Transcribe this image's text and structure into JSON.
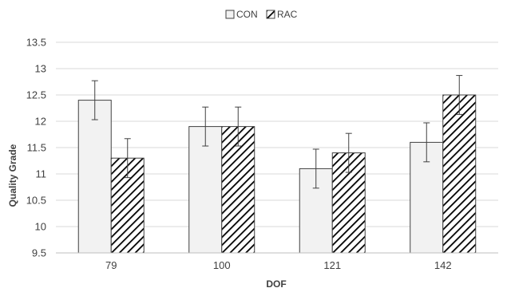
{
  "chart_data": {
    "type": "bar",
    "xlabel": "DOF",
    "ylabel": "Quality Grade",
    "categories": [
      "79",
      "100",
      "121",
      "142"
    ],
    "ylim": [
      9.5,
      13.5
    ],
    "yticks": [
      "9.5",
      "10",
      "10.5",
      "11",
      "11.5",
      "12",
      "12.5",
      "13",
      "13.5"
    ],
    "grid": true,
    "legend_position": "top-center",
    "series": [
      {
        "name": "CON",
        "values": [
          12.4,
          11.9,
          11.1,
          11.6
        ],
        "errors": [
          0.37,
          0.37,
          0.37,
          0.37
        ],
        "fill": "plain",
        "color": "#f2f2f2"
      },
      {
        "name": "RAC",
        "values": [
          11.3,
          11.9,
          11.4,
          12.5
        ],
        "errors": [
          0.37,
          0.37,
          0.37,
          0.37
        ],
        "fill": "diagonal-hatch",
        "color": "#000000"
      }
    ]
  }
}
